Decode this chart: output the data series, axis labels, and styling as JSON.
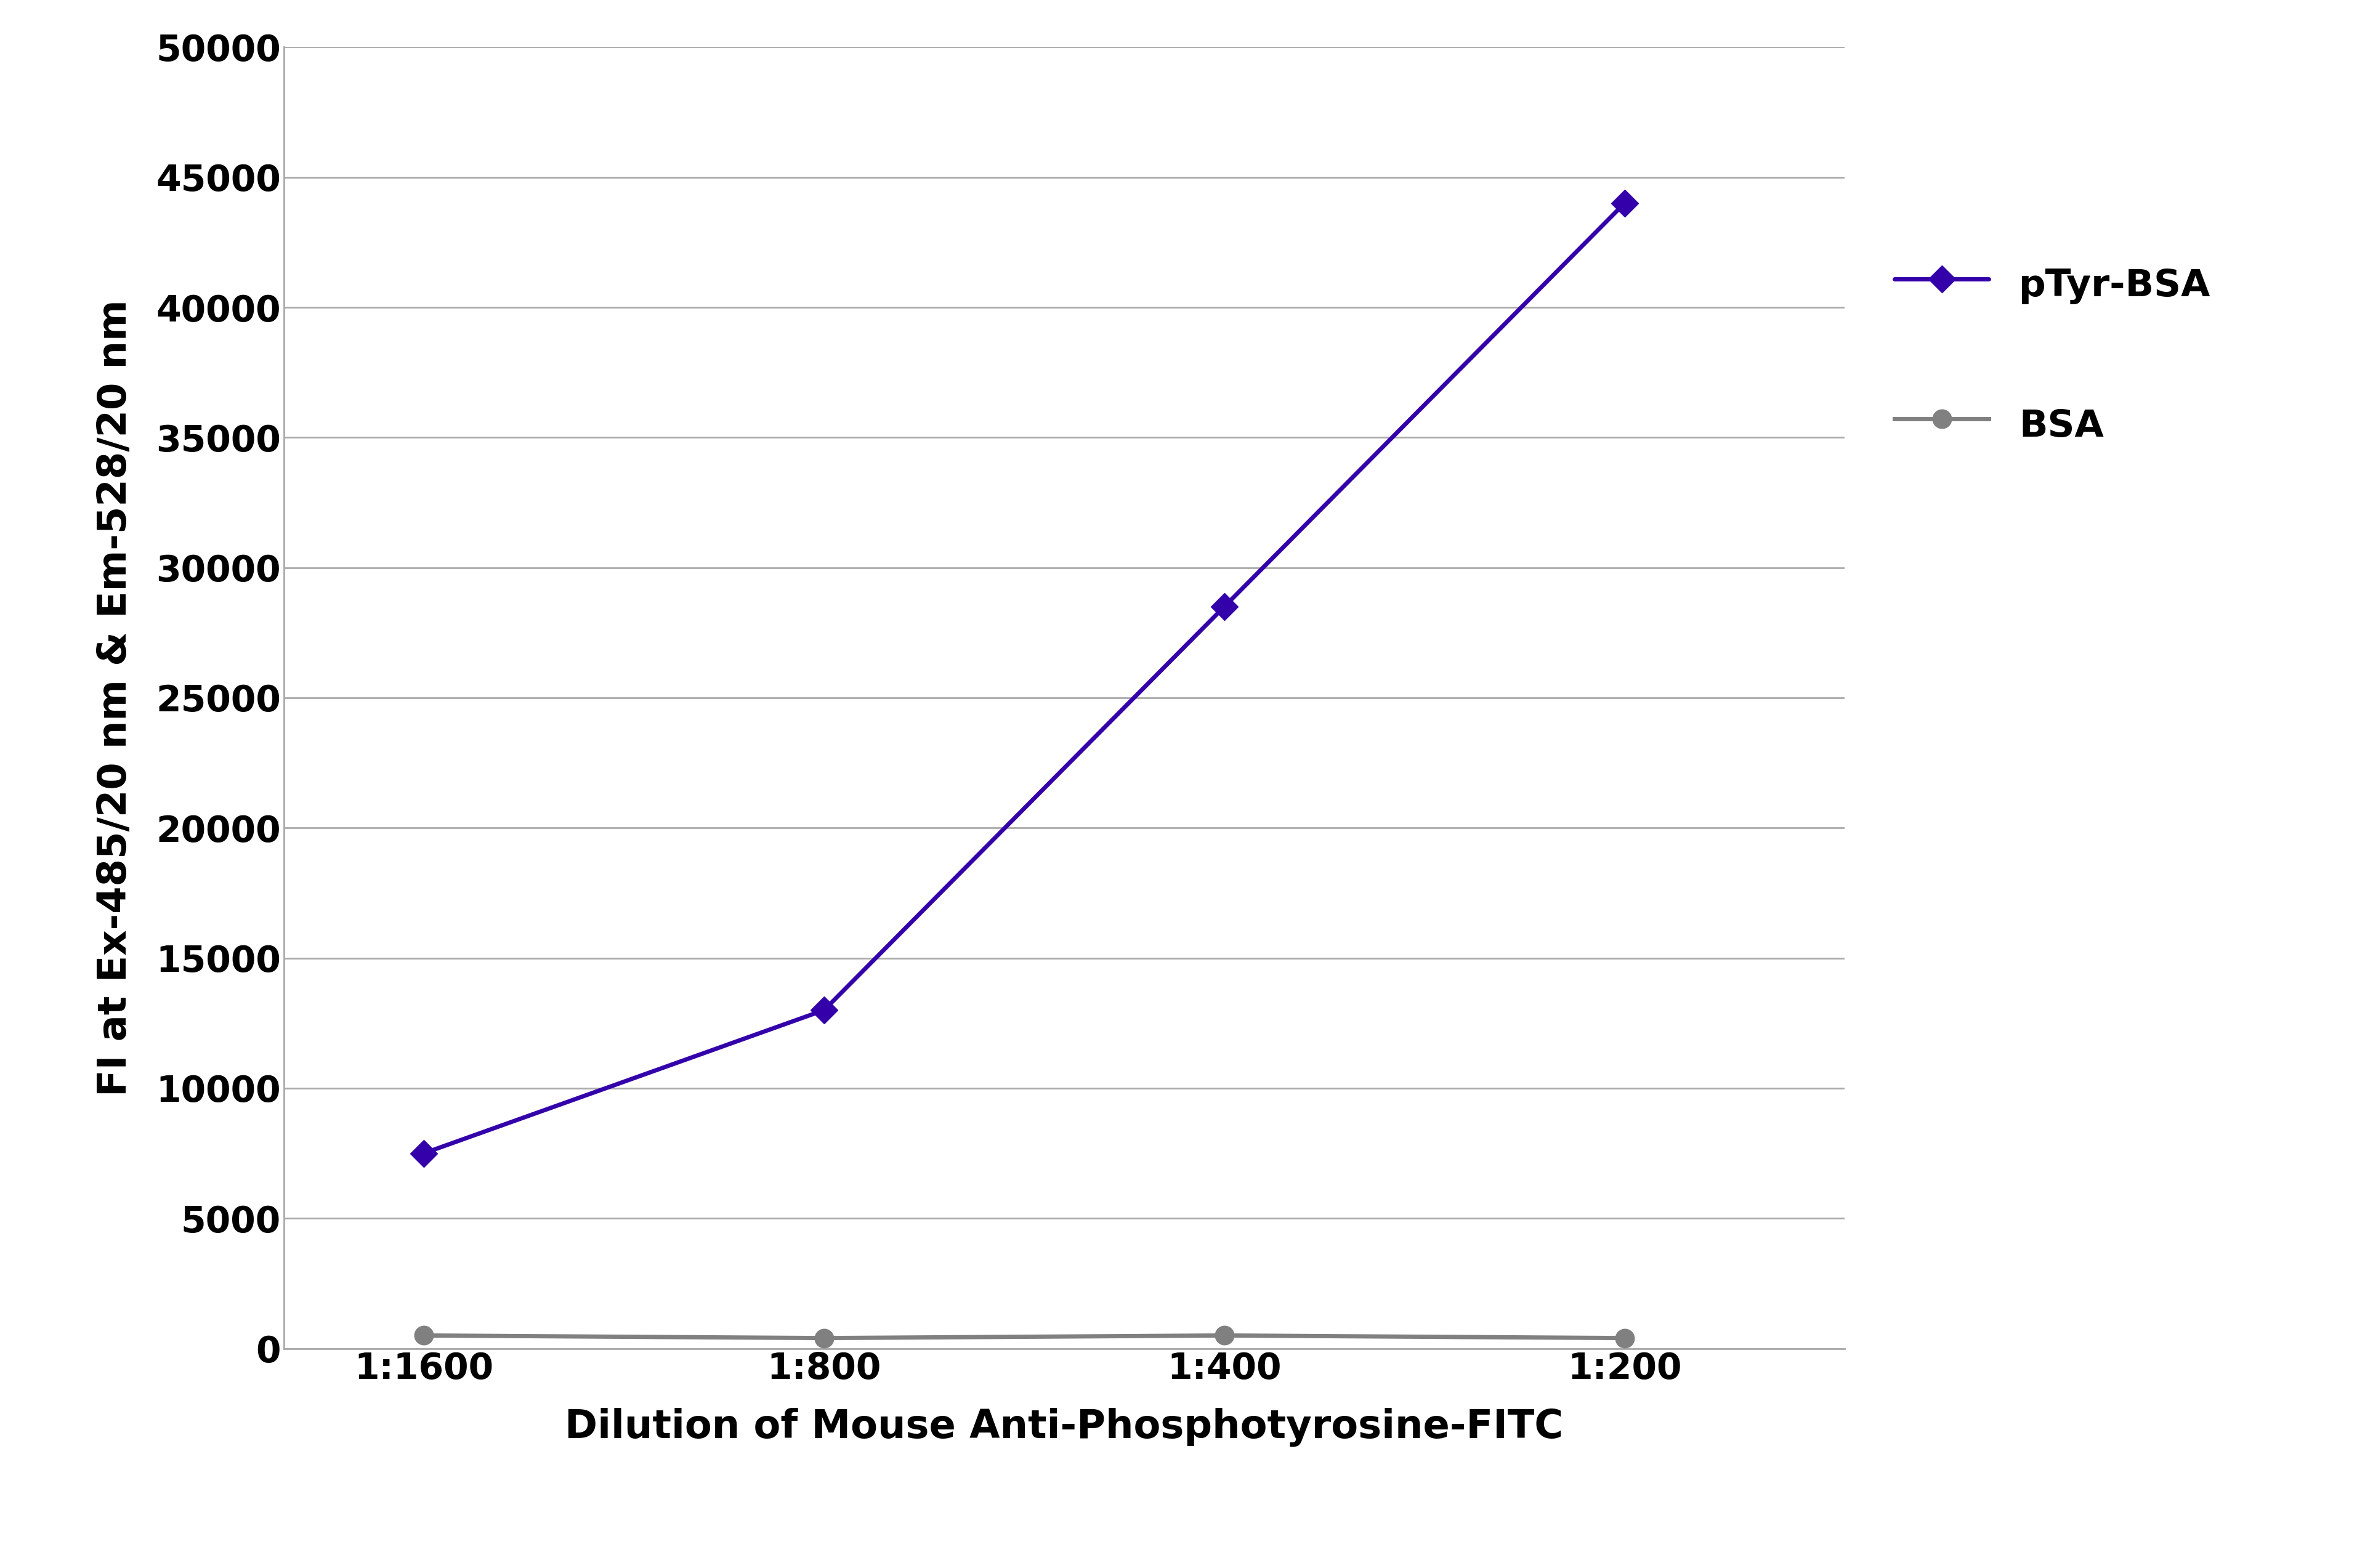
{
  "x_labels": [
    "1:1600",
    "1:800",
    "1:400",
    "1:200"
  ],
  "x_positions": [
    0,
    1,
    2,
    3
  ],
  "pTyr_BSA": [
    7500,
    13000,
    28500,
    44000
  ],
  "BSA": [
    500,
    400,
    500,
    400
  ],
  "pTyr_color": "#3300AA",
  "BSA_color": "#808080",
  "pTyr_label": "pTyr-BSA",
  "BSA_label": "BSA",
  "ylabel": "FI at Ex-485/20 nm & Em-528/20 nm",
  "xlabel": "Dilution of Mouse Anti-Phosphotyrosine-FITC",
  "ylim": [
    0,
    50000
  ],
  "yticks": [
    0,
    5000,
    10000,
    15000,
    20000,
    25000,
    30000,
    35000,
    40000,
    45000,
    50000
  ],
  "ytick_labels": [
    "0",
    "5000",
    "10000",
    "15000",
    "20000",
    "25000",
    "30000",
    "35000",
    "40000",
    "45000",
    "50000"
  ],
  "line_width": 5,
  "marker_size": 22,
  "label_fontsize": 46,
  "tick_fontsize": 42,
  "legend_fontsize": 44,
  "background_color": "#ffffff",
  "grid_color": "#aaaaaa",
  "spine_color": "#aaaaaa"
}
